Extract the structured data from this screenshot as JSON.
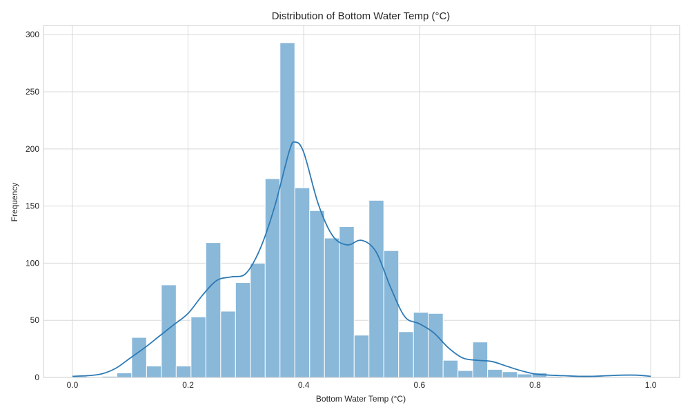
{
  "chart_data": {
    "type": "bar",
    "title": "Distribution of Bottom Water Temp (°C)",
    "xlabel": "Bottom Water Temp (°C)",
    "ylabel": "Frequency",
    "xlim": [
      -0.05,
      1.05
    ],
    "ylim": [
      0,
      308
    ],
    "xticks": [
      0.0,
      0.2,
      0.4,
      0.6,
      0.8,
      1.0
    ],
    "xtick_labels": [
      "0.0",
      "0.2",
      "0.4",
      "0.6",
      "0.8",
      "1.0"
    ],
    "yticks": [
      0,
      50,
      100,
      150,
      200,
      250,
      300
    ],
    "ytick_labels": [
      "0",
      "50",
      "100",
      "150",
      "200",
      "250",
      "300"
    ],
    "grid": true,
    "bin_width": 0.02564,
    "bin_starts": [
      0.0,
      0.02564,
      0.05128,
      0.07692,
      0.10256,
      0.12821,
      0.15385,
      0.17949,
      0.20513,
      0.23077,
      0.25641,
      0.28205,
      0.30769,
      0.33333,
      0.35897,
      0.38462,
      0.41026,
      0.4359,
      0.46154,
      0.48718,
      0.51282,
      0.53846,
      0.5641,
      0.58974,
      0.61538,
      0.64103,
      0.66667,
      0.69231,
      0.71795,
      0.74359,
      0.76923,
      0.79487,
      0.82051,
      0.84615,
      0.87179,
      0.89744,
      0.92308,
      0.94872,
      0.97436
    ],
    "values": [
      1,
      0,
      1,
      4,
      35,
      10,
      81,
      10,
      53,
      118,
      58,
      83,
      100,
      174,
      293,
      166,
      146,
      122,
      132,
      37,
      155,
      111,
      40,
      57,
      56,
      15,
      6,
      31,
      7,
      5,
      3,
      4,
      1,
      0,
      0,
      0,
      0,
      0,
      0
    ],
    "kde": {
      "x": [
        0.0,
        0.025,
        0.05,
        0.075,
        0.1,
        0.125,
        0.15,
        0.175,
        0.2,
        0.225,
        0.25,
        0.275,
        0.3,
        0.325,
        0.35,
        0.375,
        0.385,
        0.4,
        0.425,
        0.45,
        0.475,
        0.5,
        0.525,
        0.55,
        0.575,
        0.6,
        0.625,
        0.65,
        0.675,
        0.7,
        0.725,
        0.75,
        0.775,
        0.8,
        0.825,
        0.85,
        0.875,
        0.9,
        0.925,
        0.95,
        0.975,
        1.0
      ],
      "y": [
        1,
        1.5,
        3,
        8,
        17,
        26,
        36,
        46,
        56,
        72,
        85,
        88,
        91,
        113,
        150,
        198,
        206,
        197,
        152,
        124,
        116,
        120,
        110,
        79,
        53,
        47,
        39,
        26,
        17,
        15,
        14,
        10,
        6,
        3,
        2,
        1.5,
        1,
        1,
        1.5,
        2,
        2,
        1
      ]
    },
    "colors": {
      "bar": "#89b8d9",
      "bar_edge": "#ffffff",
      "kde": "#2d7ab5",
      "grid": "#d8d8d8",
      "spine": "#cccccc"
    }
  }
}
